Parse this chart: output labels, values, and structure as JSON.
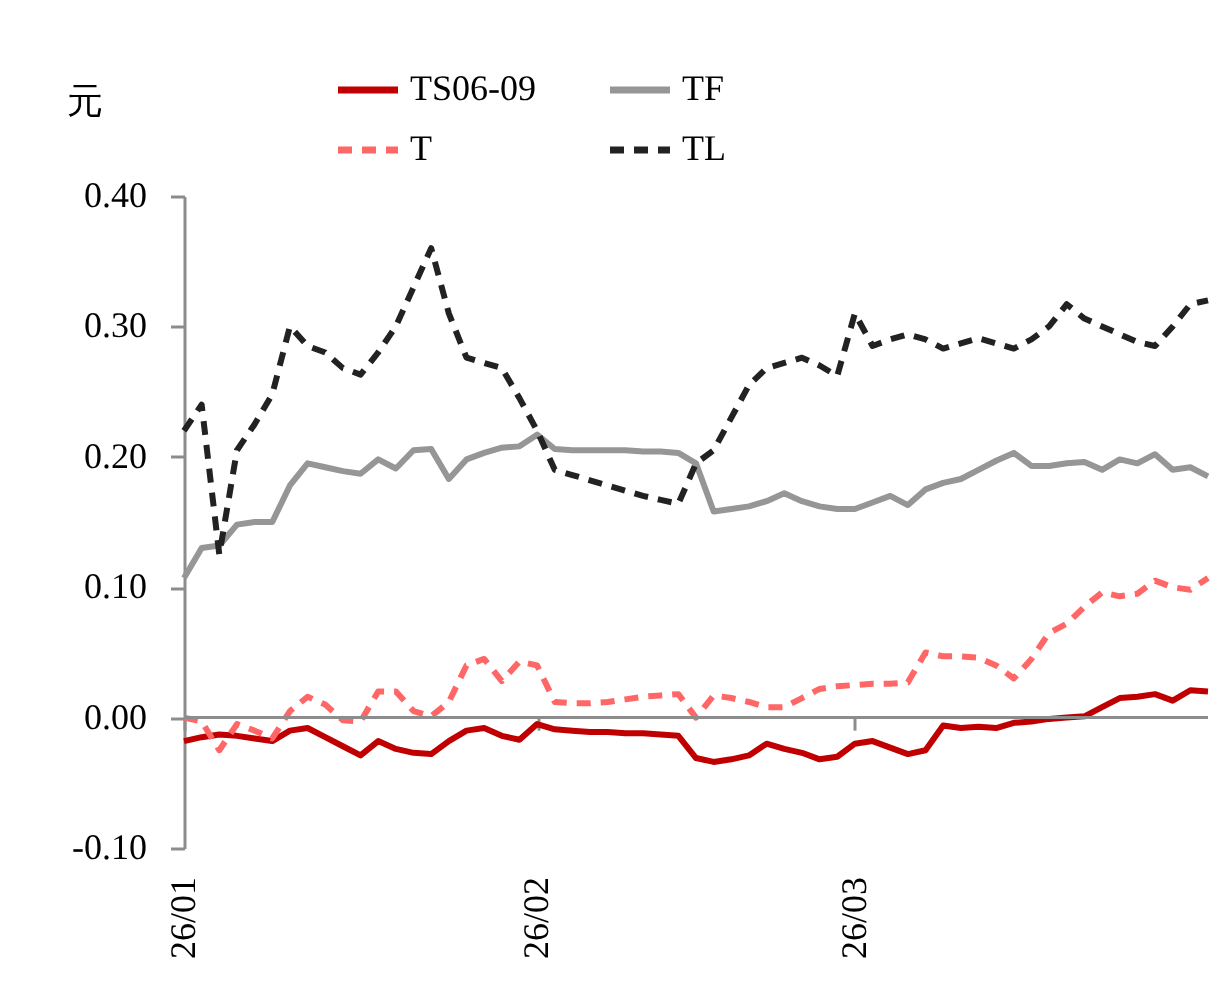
{
  "chart_data": {
    "type": "line",
    "ylabel": "元",
    "categories": [
      "26/01",
      null,
      null,
      null,
      null,
      null,
      null,
      null,
      null,
      null,
      null,
      null,
      null,
      null,
      null,
      null,
      null,
      null,
      null,
      null,
      "26/02",
      null,
      null,
      null,
      null,
      null,
      null,
      null,
      null,
      null,
      null,
      null,
      null,
      null,
      null,
      null,
      null,
      null,
      "26/03",
      null,
      null,
      null,
      null,
      null,
      null,
      null,
      null,
      null,
      null,
      null,
      null,
      null,
      null,
      null,
      null,
      null,
      null,
      null,
      null
    ],
    "series": [
      {
        "name": "TS06-09",
        "color": "#c00000",
        "line_style": "solid",
        "values": [
          -0.018,
          -0.015,
          -0.013,
          -0.014,
          -0.016,
          -0.018,
          -0.01,
          -0.008,
          -0.015,
          -0.022,
          -0.029,
          -0.018,
          -0.024,
          -0.027,
          -0.028,
          -0.018,
          -0.01,
          -0.008,
          -0.014,
          -0.017,
          -0.005,
          -0.009,
          -0.01,
          -0.011,
          -0.011,
          -0.012,
          -0.012,
          -0.013,
          -0.014,
          -0.031,
          -0.034,
          -0.032,
          -0.029,
          -0.02,
          -0.024,
          -0.027,
          -0.032,
          -0.03,
          -0.02,
          -0.018,
          -0.023,
          -0.028,
          -0.025,
          -0.006,
          -0.008,
          -0.007,
          -0.008,
          -0.004,
          -0.003,
          -0.001,
          0.0,
          0.001,
          0.008,
          0.015,
          0.016,
          0.018,
          0.013,
          0.021,
          0.02
        ]
      },
      {
        "name": "TF",
        "color": "#969696",
        "line_style": "solid",
        "values": [
          0.107,
          0.13,
          0.132,
          0.148,
          0.15,
          0.15,
          0.178,
          0.195,
          0.192,
          0.189,
          0.187,
          0.198,
          0.191,
          0.205,
          0.206,
          0.183,
          0.198,
          0.203,
          0.207,
          0.208,
          0.217,
          0.206,
          0.205,
          0.205,
          0.205,
          0.205,
          0.204,
          0.204,
          0.203,
          0.195,
          0.158,
          0.16,
          0.162,
          0.166,
          0.172,
          0.166,
          0.162,
          0.16,
          0.16,
          0.165,
          0.17,
          0.163,
          0.175,
          0.18,
          0.183,
          0.19,
          0.197,
          0.203,
          0.193,
          0.193,
          0.195,
          0.196,
          0.19,
          0.198,
          0.195,
          0.202,
          0.19,
          0.192,
          0.185
        ]
      },
      {
        "name": "T",
        "color": "#ff6666",
        "line_style": "dashed",
        "values": [
          0.0,
          -0.003,
          -0.025,
          -0.005,
          -0.01,
          -0.016,
          0.005,
          0.016,
          0.01,
          -0.002,
          -0.003,
          0.02,
          0.02,
          0.005,
          0.001,
          0.012,
          0.04,
          0.045,
          0.028,
          0.043,
          0.04,
          0.012,
          0.011,
          0.011,
          0.012,
          0.014,
          0.016,
          0.017,
          0.018,
          0.0,
          0.017,
          0.015,
          0.012,
          0.008,
          0.008,
          0.015,
          0.022,
          0.024,
          0.025,
          0.026,
          0.026,
          0.027,
          0.05,
          0.047,
          0.047,
          0.046,
          0.04,
          0.03,
          0.045,
          0.065,
          0.072,
          0.085,
          0.096,
          0.093,
          0.095,
          0.105,
          0.1,
          0.098,
          0.107
        ]
      },
      {
        "name": "TL",
        "color": "#222222",
        "line_style": "dashed",
        "values": [
          0.22,
          0.24,
          0.125,
          0.205,
          0.225,
          0.248,
          0.3,
          0.285,
          0.28,
          0.268,
          0.263,
          0.28,
          0.3,
          0.33,
          0.36,
          0.31,
          0.276,
          0.272,
          0.268,
          0.245,
          0.22,
          0.19,
          0.186,
          0.182,
          0.178,
          0.174,
          0.17,
          0.167,
          0.164,
          0.195,
          0.205,
          0.23,
          0.255,
          0.268,
          0.272,
          0.276,
          0.27,
          0.262,
          0.31,
          0.285,
          0.29,
          0.294,
          0.29,
          0.283,
          0.287,
          0.291,
          0.287,
          0.283,
          0.29,
          0.3,
          0.317,
          0.306,
          0.3,
          0.294,
          0.288,
          0.285,
          0.3,
          0.317,
          0.32
        ]
      }
    ],
    "ylim": [
      -0.1,
      0.4
    ],
    "yticks": [
      {
        "value": -0.1,
        "label": "-0.10"
      },
      {
        "value": 0,
        "label": "0.00"
      },
      {
        "value": 0.1,
        "label": "0.10"
      },
      {
        "value": 0.2,
        "label": "0.20"
      },
      {
        "value": 0.3,
        "label": "0.30"
      },
      {
        "value": 0.4,
        "label": "0.40"
      }
    ],
    "ref_lines": [
      {
        "axis": "y",
        "value": 0,
        "color": "#8c8c8c"
      }
    ],
    "grid": false,
    "legend": "top"
  }
}
